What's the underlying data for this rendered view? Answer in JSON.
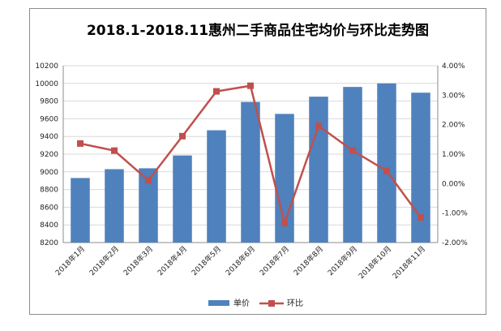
{
  "chart_data": {
    "type": "bar",
    "title": "2018.1-2018.11惠州二手商品住宅均价与环比走势图",
    "categories": [
      "2018年1月",
      "2018年2月",
      "2018年3月",
      "2018年4月",
      "2018年5月",
      "2018年6月",
      "2018年7月",
      "2018年8月",
      "2018年9月",
      "2018年10月",
      "2018年11月"
    ],
    "series": [
      {
        "name": "单价",
        "type": "bar",
        "axis": "left",
        "color": "#4f81bd",
        "values": [
          8930,
          9030,
          9040,
          9185,
          9470,
          9790,
          9655,
          9850,
          9960,
          10000,
          9895
        ]
      },
      {
        "name": "环比",
        "type": "line",
        "axis": "right",
        "color": "#c0504d",
        "values": [
          1.36,
          1.12,
          0.11,
          1.61,
          3.13,
          3.32,
          -1.34,
          1.96,
          1.12,
          0.43,
          -1.15
        ]
      }
    ],
    "y_left": {
      "min": 8200,
      "max": 10200,
      "step": 200,
      "ticks": [
        "8200",
        "8400",
        "8600",
        "8800",
        "9000",
        "9200",
        "9400",
        "9600",
        "9800",
        "10000",
        "10200"
      ]
    },
    "y_right": {
      "min": -2,
      "max": 4,
      "step": 1,
      "ticks": [
        "-2.00%",
        "-1.00%",
        "0.00%",
        "1.00%",
        "2.00%",
        "3.00%",
        "4.00%"
      ]
    },
    "grid": true,
    "legend": "bottom"
  }
}
